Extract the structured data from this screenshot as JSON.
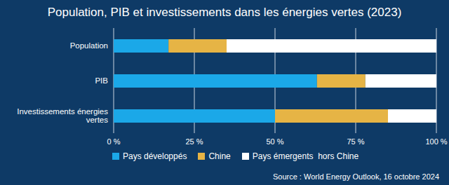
{
  "chart_data": {
    "type": "bar",
    "title": "Population, PIB et investissements dans les énergies vertes (2023)",
    "orientation": "horizontal",
    "stacked": true,
    "categories": [
      "Population",
      "PIB",
      "Investissements énergies vertes"
    ],
    "series": [
      {
        "name": "Pays développés",
        "color": "#1ba8e8",
        "values": [
          17,
          63,
          50
        ]
      },
      {
        "name": "Chine",
        "color": "#e6b445",
        "values": [
          18,
          15,
          35
        ]
      },
      {
        "name": "Pays émergents  hors Chine",
        "color": "#ffffff",
        "values": [
          65,
          22,
          15
        ]
      }
    ],
    "xlim": [
      0,
      100
    ],
    "xticks": [
      {
        "value": 0,
        "label": "0 %"
      },
      {
        "value": 25,
        "label": "25 %"
      },
      {
        "value": 50,
        "label": "50 %"
      },
      {
        "value": 75,
        "label": "75 %"
      },
      {
        "value": 100,
        "label": "100 %"
      }
    ],
    "grid": true,
    "legend": "bottom left",
    "source": "Source : World Energy Outlook, 16 octobre 2024"
  }
}
